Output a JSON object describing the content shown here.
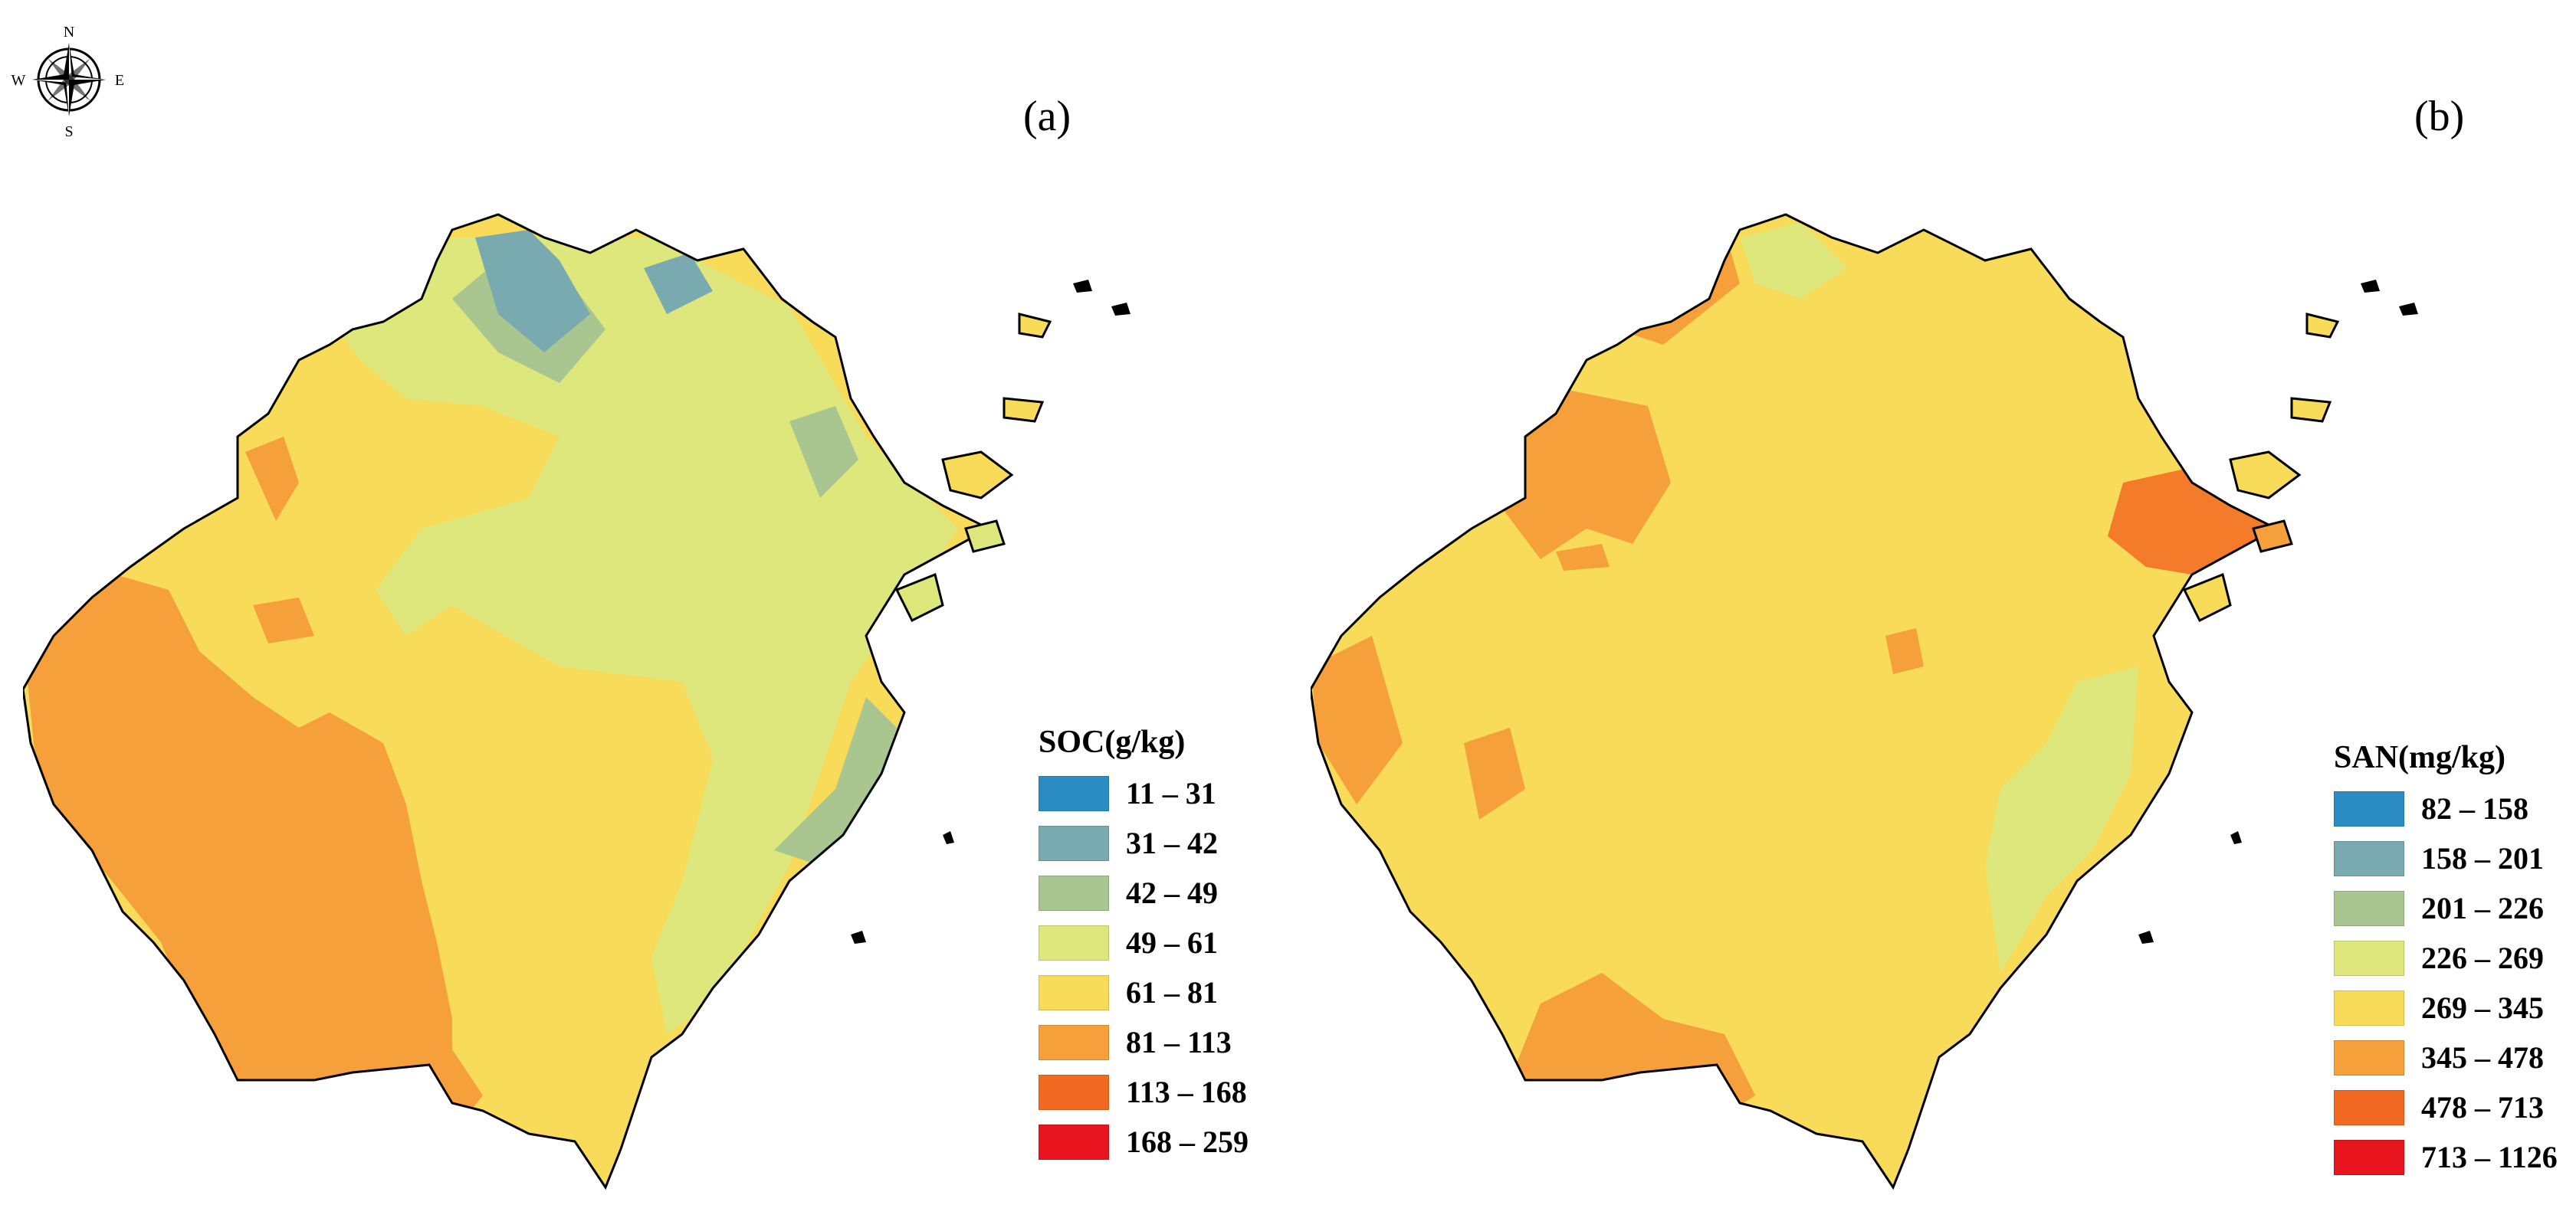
{
  "compass": {
    "n": "N",
    "s": "S",
    "e": "E",
    "w": "W"
  },
  "panels": [
    {
      "label": "(a)",
      "legend": {
        "title": "SOC(g/kg)",
        "items": [
          {
            "range": "11 – 31",
            "color": "#2B8CC4"
          },
          {
            "range": "31 – 42",
            "color": "#79AAB0"
          },
          {
            "range": "42 – 49",
            "color": "#A9C690"
          },
          {
            "range": "49 – 61",
            "color": "#DDE77C"
          },
          {
            "range": "61 – 81",
            "color": "#F9DB5A"
          },
          {
            "range": "81 – 113",
            "color": "#F5A03A"
          },
          {
            "range": "113 – 168",
            "color": "#F26A22"
          },
          {
            "range": "168 – 259",
            "color": "#E8141E"
          }
        ]
      }
    },
    {
      "label": "(b)",
      "legend": {
        "title": "SAN(mg/kg)",
        "items": [
          {
            "range": "82 – 158",
            "color": "#2B8CC4"
          },
          {
            "range": "158 – 201",
            "color": "#79AAB0"
          },
          {
            "range": "201 – 226",
            "color": "#A9C690"
          },
          {
            "range": "226 – 269",
            "color": "#DDE77C"
          },
          {
            "range": "269 – 345",
            "color": "#F9DB5A"
          },
          {
            "range": "345 – 478",
            "color": "#F5A03A"
          },
          {
            "range": "478 – 713",
            "color": "#F26A22"
          },
          {
            "range": "713 – 1126",
            "color": "#E8141E"
          }
        ]
      }
    }
  ]
}
